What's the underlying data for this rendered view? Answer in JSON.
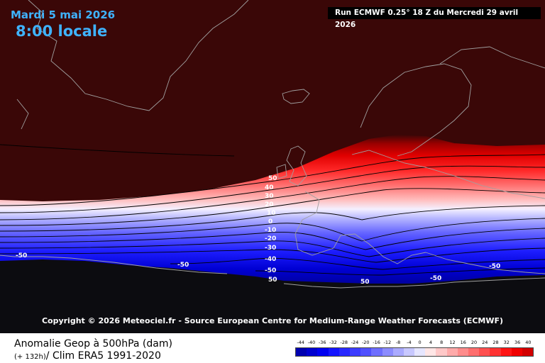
{
  "header": {
    "date": "Mardi 5 mai 2026",
    "time": "8:00 locale",
    "run": "Run ECMWF 0.25° 18 Z du Mercredi 29 avril 2026"
  },
  "copyright": "Copyright © 2026 Meteociel.fr - Source European Centre for Medium-Range Weather Forecasts (ECMWF)",
  "contour_labels": [
    "50",
    "40",
    "30",
    "20",
    "10",
    "0",
    "-10",
    "-20",
    "-30",
    "-40",
    "-50",
    "50",
    "-50",
    "-50",
    "50",
    "-50",
    "-50"
  ],
  "footer": {
    "title": "Anomalie Geop à 500hPa (dam)",
    "step": "(+ 132h)",
    "climatology": "/ Clim ERA5 1991-2020"
  },
  "scale": {
    "ticks": [
      "-44",
      "-40",
      "-36",
      "-32",
      "-28",
      "-24",
      "-20",
      "-16",
      "-12",
      "-8",
      "-4",
      "0",
      "4",
      "8",
      "12",
      "16",
      "20",
      "24",
      "28",
      "32",
      "36",
      "40"
    ],
    "colors": [
      "#0000b0",
      "#0000d0",
      "#0000f0",
      "#1414ff",
      "#2828ff",
      "#3c3cff",
      "#5050ff",
      "#6e6eff",
      "#8c8cff",
      "#aaaaff",
      "#c8c8ff",
      "#e6e6ff",
      "#ffe6e6",
      "#ffc8c8",
      "#ffaaaa",
      "#ff8c8c",
      "#ff6e6e",
      "#ff5050",
      "#ff3232",
      "#ff1414",
      "#f00000",
      "#d20000"
    ]
  },
  "colors": {
    "background_positive": "#3a0707",
    "background_negative": "#0c0c10",
    "header_text": "#3fb3ff"
  }
}
